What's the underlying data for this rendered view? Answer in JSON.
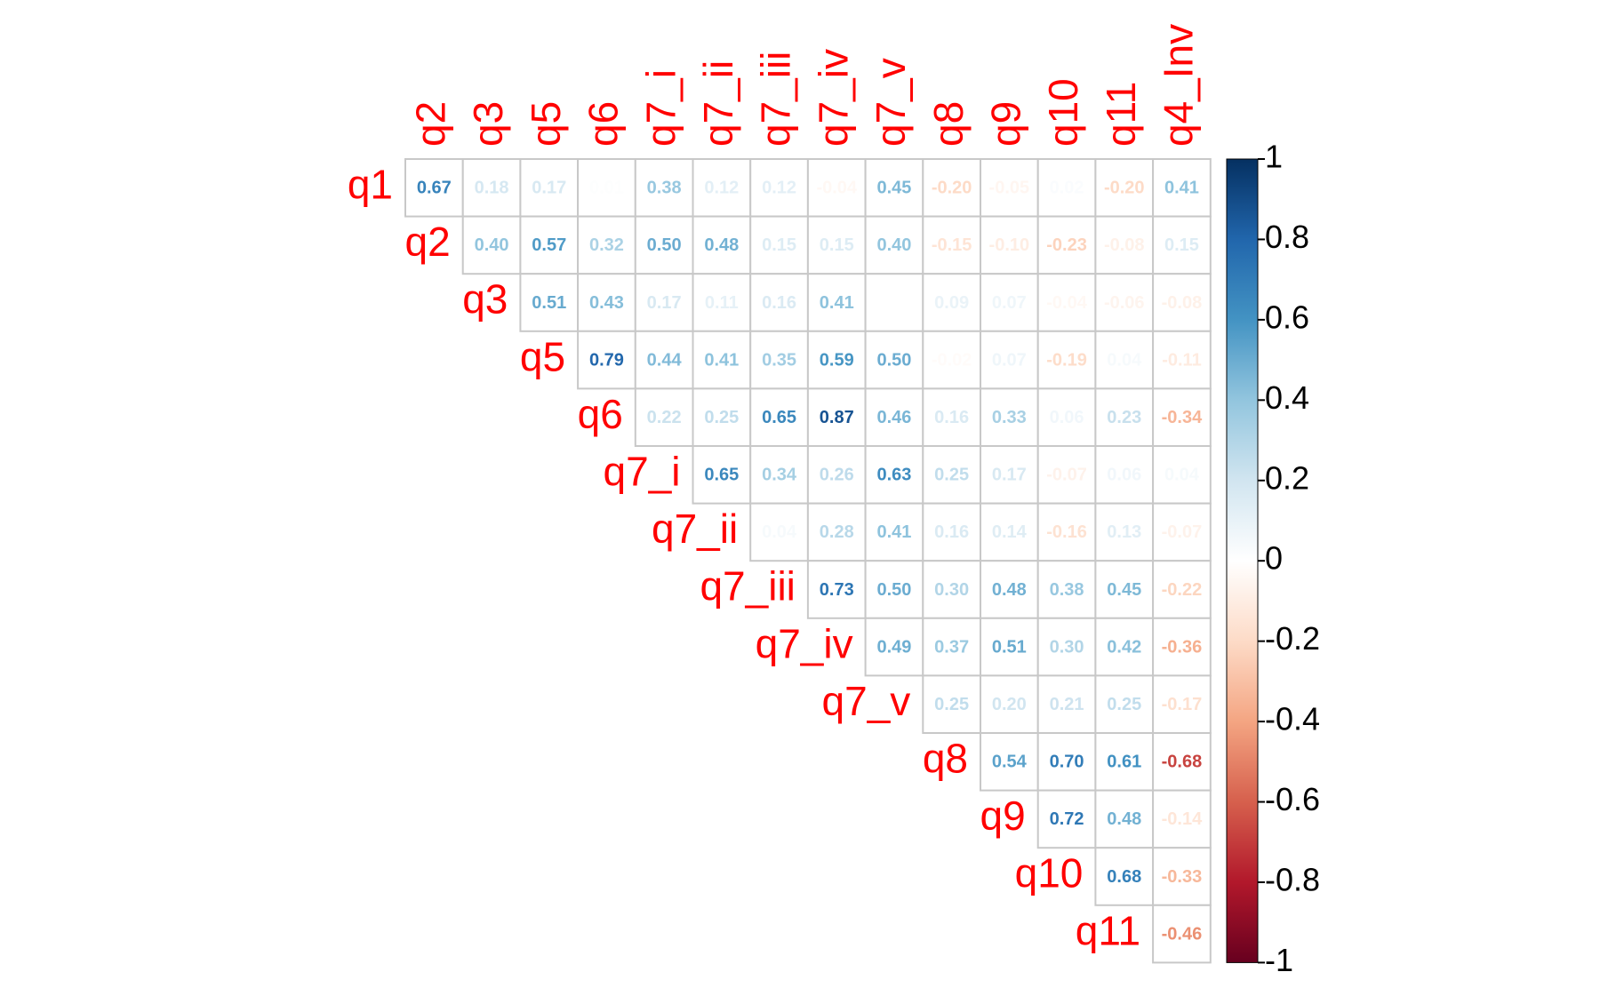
{
  "chart_data": {
    "type": "corrplot",
    "rows": [
      "q1",
      "q2",
      "q3",
      "q5",
      "q6",
      "q7_i",
      "q7_ii",
      "q7_iii",
      "q7_iv",
      "q7_v",
      "q8",
      "q9",
      "q10",
      "q11"
    ],
    "columns": [
      "q2",
      "q3",
      "q5",
      "q6",
      "q7_i",
      "q7_ii",
      "q7_iii",
      "q7_iv",
      "q7_v",
      "q8",
      "q9",
      "q10",
      "q11",
      "q4_Inv"
    ],
    "values": [
      [
        0.67,
        0.18,
        0.17,
        0.01,
        0.38,
        0.12,
        0.12,
        -0.04,
        0.45,
        -0.2,
        -0.05,
        0.02,
        -0.2,
        0.41
      ],
      [
        0.4,
        0.57,
        0.32,
        0.5,
        0.48,
        0.15,
        0.15,
        0.4,
        -0.15,
        -0.1,
        -0.23,
        -0.08,
        0.15
      ],
      [
        0.51,
        0.43,
        0.17,
        0.11,
        0.16,
        0.41,
        0,
        0.09,
        0.07,
        -0.04,
        -0.06,
        -0.08
      ],
      [
        0.79,
        0.44,
        0.41,
        0.35,
        0.59,
        0.5,
        -0.02,
        0.07,
        -0.19,
        0.04,
        -0.11
      ],
      [
        0.22,
        0.25,
        0.65,
        0.87,
        0.46,
        0.16,
        0.33,
        0.06,
        0.23,
        -0.34
      ],
      [
        0.65,
        0.34,
        0.26,
        0.63,
        0.25,
        0.17,
        -0.07,
        0.06,
        0.04
      ],
      [
        0.04,
        0.28,
        0.41,
        0.16,
        0.14,
        -0.16,
        0.13,
        -0.07
      ],
      [
        0.73,
        0.5,
        0.3,
        0.48,
        0.38,
        0.45,
        -0.22
      ],
      [
        0.49,
        0.37,
        0.51,
        0.3,
        0.42,
        -0.36
      ],
      [
        0.25,
        0.2,
        0.21,
        0.25,
        -0.17
      ],
      [
        0.54,
        0.7,
        0.61,
        -0.68
      ],
      [
        0.72,
        0.48,
        -0.14
      ],
      [
        0.68,
        -0.33
      ],
      [
        -0.46
      ]
    ],
    "value_labels": [
      [
        "0.67",
        "0.18",
        "0.17",
        "0.01",
        "0.38",
        "0.12",
        "0.12",
        "-0.04",
        "0.45",
        "-0.20",
        "-0.05",
        "0.02",
        "-0.20",
        "0.41"
      ],
      [
        "0.40",
        "0.57",
        "0.32",
        "0.50",
        "0.48",
        "0.15",
        "0.15",
        "0.40",
        "-0.15",
        "-0.10",
        "-0.23",
        "-0.08",
        "0.15"
      ],
      [
        "0.51",
        "0.43",
        "0.17",
        "0.11",
        "0.16",
        "0.41",
        "0.00",
        "0.09",
        "0.07",
        "-0.04",
        "-0.06",
        "-0.08"
      ],
      [
        "0.79",
        "0.44",
        "0.41",
        "0.35",
        "0.59",
        "0.50",
        "-0.02",
        "0.07",
        "-0.19",
        "0.04",
        "-0.11"
      ],
      [
        "0.22",
        "0.25",
        "0.65",
        "0.87",
        "0.46",
        "0.16",
        "0.33",
        "0.06",
        "0.23",
        "-0.34"
      ],
      [
        "0.65",
        "0.34",
        "0.26",
        "0.63",
        "0.25",
        "0.17",
        "-0.07",
        "0.06",
        "0.04"
      ],
      [
        "0.04",
        "0.28",
        "0.41",
        "0.16",
        "0.14",
        "-0.16",
        "0.13",
        "-0.07"
      ],
      [
        "0.73",
        "0.50",
        "0.30",
        "0.48",
        "0.38",
        "0.45",
        "-0.22"
      ],
      [
        "0.49",
        "0.37",
        "0.51",
        "0.30",
        "0.42",
        "-0.36"
      ],
      [
        "0.25",
        "0.20",
        "0.21",
        "0.25",
        "-0.17"
      ],
      [
        "0.54",
        "0.70",
        "0.61",
        "-0.68"
      ],
      [
        "0.72",
        "0.48",
        "-0.14"
      ],
      [
        "0.68",
        "-0.33"
      ],
      [
        "-0.46"
      ]
    ],
    "colormap": [
      "#67001F",
      "#B2182B",
      "#D6604D",
      "#F4A582",
      "#FDDBC7",
      "#FFFFFF",
      "#D1E5F0",
      "#92C5DE",
      "#4393C3",
      "#2166AC",
      "#053061"
    ],
    "label_color": "#ff0000",
    "clim": [
      -1,
      1
    ],
    "cticks": [
      1,
      0.8,
      0.6,
      0.4,
      0.2,
      0,
      -0.2,
      -0.4,
      -0.6,
      -0.8,
      -1
    ]
  }
}
